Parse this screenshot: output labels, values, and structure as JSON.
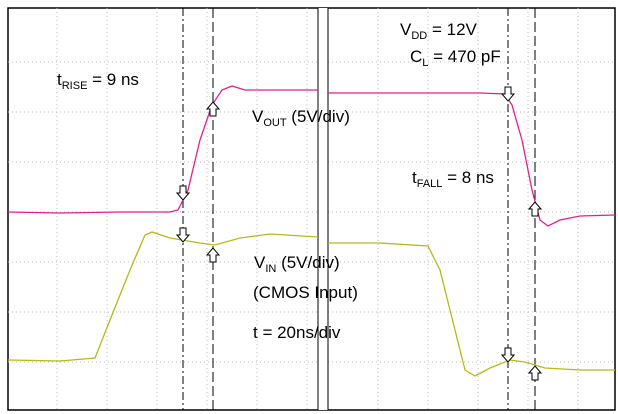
{
  "annotations": [
    {
      "main": "t",
      "sub": "RISE",
      "rest": " = 9 ns"
    },
    {
      "main": "V",
      "sub": "OUT",
      "rest": " (5V/div)"
    },
    {
      "main": "V",
      "sub": "DD",
      "rest": " = 12V"
    },
    {
      "main": "C",
      "sub": "L",
      "rest": " = 470 pF"
    },
    {
      "main": "t",
      "sub": "FALL",
      "rest": " = 8 ns"
    },
    {
      "main": "V",
      "sub": "IN",
      "rest": " (5V/div)"
    },
    {
      "main": "(CMOS Input)"
    },
    {
      "main": "t = 20ns/div"
    }
  ]
}
